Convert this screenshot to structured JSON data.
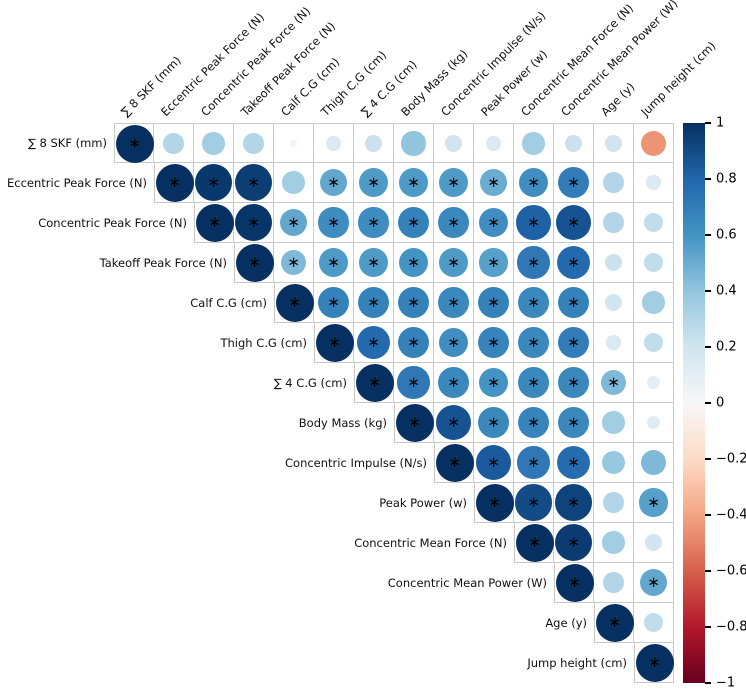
{
  "figure": {
    "background": "#ffffff"
  },
  "chart_data": {
    "type": "heatmap",
    "subtype": "correlation-bubble-matrix",
    "title": "",
    "variables": [
      "∑ 8 SKF (mm)",
      "Eccentric Peak Force (N)",
      "Concentric Peak Force (N)",
      "Takeoff Peak Force (N)",
      "Calf C.G (cm)",
      "Thigh C.G (cm)",
      "∑ 4 C.G (cm)",
      "Body Mass (kg)",
      "Concentric Impulse (N/s)",
      "Peak Power (w)",
      "Concentric Mean Force (N)",
      "Concentric Mean Power (W)",
      "Age (y)",
      "Jump height (cm)"
    ],
    "upper_triangle_r": [
      [
        1.0,
        0.3,
        0.35,
        0.3,
        0.03,
        0.15,
        0.22,
        0.4,
        0.2,
        0.15,
        0.35,
        0.22,
        0.2,
        -0.45
      ],
      [
        1.0,
        0.97,
        0.95,
        0.35,
        0.52,
        0.57,
        0.57,
        0.57,
        0.5,
        0.62,
        0.7,
        0.3,
        0.15
      ],
      [
        1.0,
        0.98,
        0.52,
        0.63,
        0.63,
        0.68,
        0.65,
        0.62,
        0.82,
        0.87,
        0.3,
        0.25
      ],
      [
        1.0,
        0.45,
        0.57,
        0.57,
        0.6,
        0.57,
        0.55,
        0.72,
        0.78,
        0.22,
        0.25
      ],
      [
        1.0,
        0.68,
        0.68,
        0.68,
        0.65,
        0.68,
        0.65,
        0.68,
        0.2,
        0.35
      ],
      [
        1.0,
        0.78,
        0.68,
        0.62,
        0.67,
        0.65,
        0.7,
        0.15,
        0.25
      ],
      [
        1.0,
        0.72,
        0.65,
        0.6,
        0.65,
        0.65,
        0.45,
        0.1
      ],
      [
        1.0,
        0.87,
        0.65,
        0.67,
        0.65,
        0.35,
        0.12
      ],
      [
        1.0,
        0.84,
        0.72,
        0.77,
        0.38,
        0.45
      ],
      [
        1.0,
        0.9,
        0.93,
        0.3,
        0.55
      ],
      [
        1.0,
        0.96,
        0.35,
        0.2
      ],
      [
        1.0,
        0.3,
        0.52
      ],
      [
        1.0,
        0.25
      ],
      [
        1.0
      ]
    ],
    "significant": [
      [
        1,
        0,
        0,
        0,
        0,
        0,
        0,
        0,
        0,
        0,
        0,
        0,
        0,
        0
      ],
      [
        1,
        1,
        1,
        0,
        1,
        1,
        1,
        1,
        1,
        1,
        1,
        0,
        0
      ],
      [
        1,
        1,
        1,
        1,
        1,
        1,
        1,
        1,
        1,
        1,
        0,
        0
      ],
      [
        1,
        1,
        1,
        1,
        1,
        1,
        1,
        1,
        1,
        0,
        0
      ],
      [
        1,
        1,
        1,
        1,
        1,
        1,
        1,
        1,
        0,
        0
      ],
      [
        1,
        1,
        1,
        1,
        1,
        1,
        1,
        0,
        0
      ],
      [
        1,
        1,
        1,
        1,
        1,
        1,
        1,
        0
      ],
      [
        1,
        1,
        1,
        1,
        1,
        0,
        0
      ],
      [
        1,
        1,
        1,
        1,
        0,
        0
      ],
      [
        1,
        1,
        1,
        0,
        1
      ],
      [
        1,
        1,
        0,
        0
      ],
      [
        1,
        0,
        1
      ],
      [
        1,
        0
      ],
      [
        1
      ]
    ],
    "significance_marker": "∗",
    "colorbar": {
      "position": "right",
      "range": [
        -1,
        1
      ],
      "ticks": [
        1,
        0.8,
        0.6,
        0.4,
        0.2,
        0,
        -0.2,
        -0.4,
        -0.6,
        -0.8,
        -1
      ],
      "colormap": "RdBu"
    },
    "colors": {
      "rdbu_anchors": [
        "#67001f",
        "#b2182b",
        "#d6604d",
        "#f4a582",
        "#fddbc7",
        "#f7f7f7",
        "#d1e5f0",
        "#92c5de",
        "#4393c3",
        "#2166ac",
        "#053061"
      ],
      "grid_line": "#c9c9c9",
      "marker": "#000000",
      "background": "#ffffff"
    },
    "layout_hints": {
      "triangle": "upper",
      "bubble_area_proportional_to": "abs(r)",
      "column_labels_rotated_deg": 45
    }
  }
}
